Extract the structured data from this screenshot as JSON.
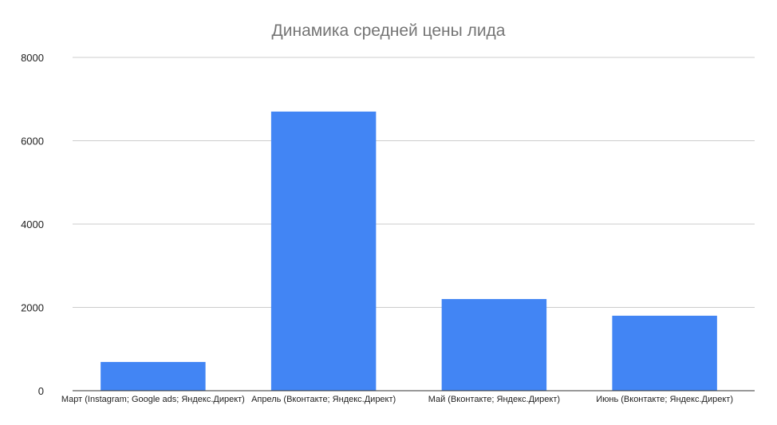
{
  "chart_data": {
    "type": "bar",
    "title": "Динамика средней цены лида",
    "xlabel": "",
    "ylabel": "",
    "categories": [
      "Март (Instagram; Google ads; Яндекс.Директ)",
      "Апрель (Вконтакте; Яндекс.Директ)",
      "Май (Вконтакте; Яндекс.Директ)",
      "Июнь (Вконтакте; Яндекс.Директ)"
    ],
    "values": [
      690,
      6700,
      2200,
      1800
    ],
    "ylim": [
      0,
      8000
    ],
    "yticks": [
      0,
      2000,
      4000,
      6000,
      8000
    ],
    "grid": true,
    "legend": "none",
    "bar_color": "#4285f4"
  }
}
